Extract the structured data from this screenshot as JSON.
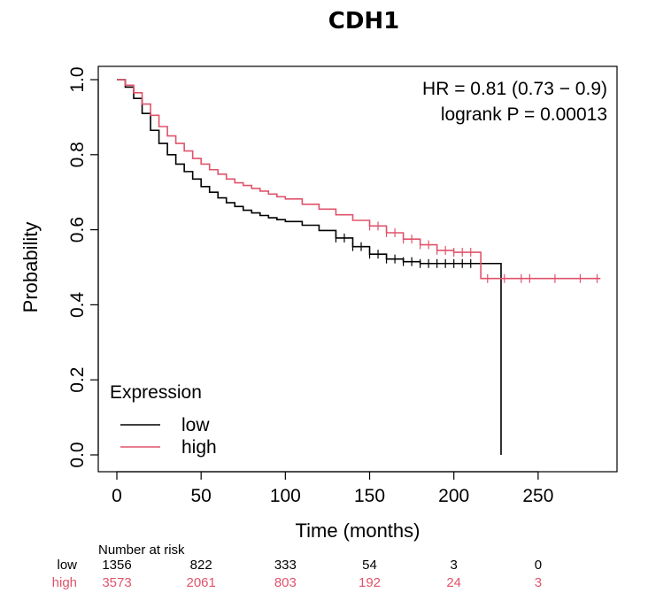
{
  "chart_data": {
    "type": "line",
    "title": "CDH1",
    "xlabel": "Time (months)",
    "ylabel": "Probability",
    "xlim": [
      -5,
      300
    ],
    "ylim": [
      0,
      1.0
    ],
    "x_ticks": [
      0,
      50,
      100,
      150,
      200,
      250
    ],
    "y_ticks": [
      0.0,
      0.2,
      0.4,
      0.6,
      0.8,
      1.0
    ],
    "x_tick_labels": [
      "0",
      "50",
      "100",
      "150",
      "200",
      "250"
    ],
    "y_tick_labels": [
      "0.0",
      "0.2",
      "0.4",
      "0.6",
      "0.8",
      "1.0"
    ],
    "annotations": [
      "HR = 0.81 (0.73 − 0.9)",
      "logrank P = 0.00013"
    ],
    "legend": {
      "title": "Expression",
      "position": "bottom-left",
      "entries": [
        "low",
        "high"
      ]
    },
    "series": [
      {
        "name": "low",
        "color": "#000000",
        "x": [
          0,
          5,
          10,
          15,
          20,
          25,
          30,
          35,
          40,
          45,
          50,
          55,
          60,
          65,
          70,
          75,
          80,
          85,
          90,
          95,
          100,
          110,
          120,
          130,
          140,
          150,
          160,
          170,
          180,
          190,
          200,
          210,
          220,
          228
        ],
        "y": [
          1.0,
          0.98,
          0.95,
          0.91,
          0.865,
          0.83,
          0.8,
          0.775,
          0.755,
          0.735,
          0.715,
          0.7,
          0.685,
          0.672,
          0.662,
          0.652,
          0.645,
          0.638,
          0.632,
          0.627,
          0.622,
          0.612,
          0.598,
          0.578,
          0.555,
          0.535,
          0.522,
          0.515,
          0.51,
          0.51,
          0.51,
          0.51,
          0.51,
          0.51
        ],
        "censor_x": [
          130,
          135,
          140,
          145,
          150,
          155,
          160,
          165,
          170,
          175,
          180,
          185,
          190,
          195,
          200,
          205,
          210
        ]
      },
      {
        "name": "high",
        "color": "#DF536B",
        "x": [
          0,
          5,
          10,
          15,
          20,
          25,
          30,
          35,
          40,
          45,
          50,
          55,
          60,
          65,
          70,
          75,
          80,
          85,
          90,
          95,
          100,
          110,
          120,
          130,
          140,
          150,
          160,
          170,
          180,
          190,
          200,
          210,
          216
        ],
        "y": [
          1.0,
          0.985,
          0.965,
          0.935,
          0.905,
          0.875,
          0.85,
          0.83,
          0.81,
          0.79,
          0.775,
          0.76,
          0.748,
          0.735,
          0.725,
          0.718,
          0.71,
          0.703,
          0.695,
          0.688,
          0.682,
          0.668,
          0.655,
          0.64,
          0.625,
          0.61,
          0.592,
          0.575,
          0.56,
          0.545,
          0.54,
          0.54,
          0.54
        ],
        "censor_x": [
          150,
          155,
          160,
          165,
          170,
          175,
          180,
          185,
          190,
          195,
          200,
          205,
          210,
          220,
          230,
          240,
          245,
          260,
          275,
          285
        ],
        "tail_after_216": 0.47
      }
    ],
    "number_at_risk": {
      "heading": "Number at risk",
      "time_points": [
        0,
        50,
        100,
        150,
        200,
        250
      ],
      "rows": [
        {
          "group": "low",
          "color": "#000000",
          "values": [
            "1356",
            "822",
            "333",
            "54",
            "3",
            "0"
          ]
        },
        {
          "group": "high",
          "color": "#DF536B",
          "values": [
            "3573",
            "2061",
            "803",
            "192",
            "24",
            "3"
          ]
        }
      ]
    }
  }
}
